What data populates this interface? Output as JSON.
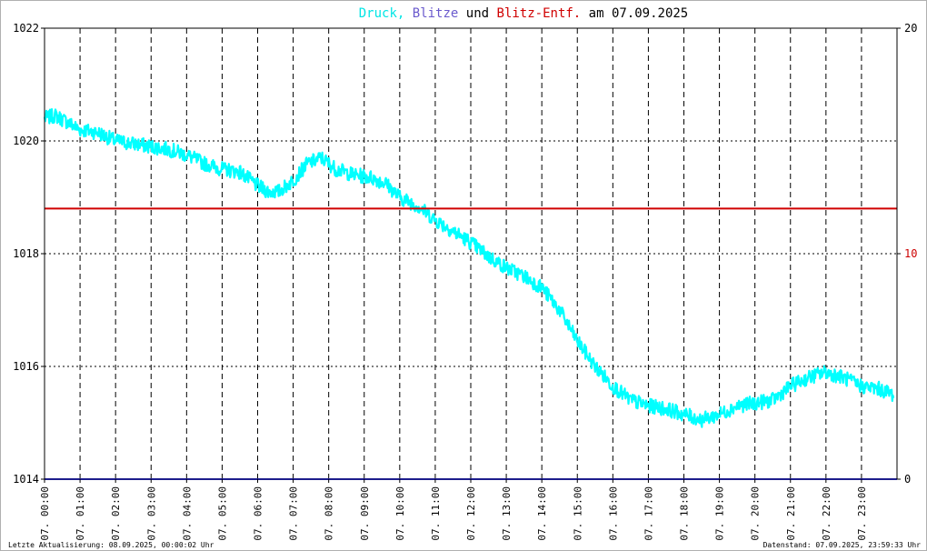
{
  "chart_data": {
    "type": "line",
    "title": {
      "parts": [
        {
          "text": "Druck",
          "color": "#00e5e5"
        },
        {
          "text": ",",
          "color": "#00e5e5"
        },
        {
          "text": " Blitze",
          "color": "#6a5acd"
        },
        {
          "text": " und ",
          "color": "#000000"
        },
        {
          "text": "Blitz-Entf.",
          "color": "#d00000"
        },
        {
          "text": " am 07.09.2025",
          "color": "#000000"
        }
      ]
    },
    "y_left": {
      "min": 1014,
      "max": 1022,
      "ticks": [
        "1014",
        "1016",
        "1018",
        "1020",
        "1022"
      ]
    },
    "y_right": {
      "min": 0,
      "max": 20,
      "ticks": [
        {
          "label": "0",
          "value": 0,
          "color": "#000000"
        },
        {
          "label": "10",
          "value": 10,
          "color": "#cc0000"
        },
        {
          "label": "20",
          "value": 20,
          "color": "#000000"
        }
      ]
    },
    "x": {
      "min": 0,
      "max": 24,
      "unit": "hours"
    },
    "x_ticks": [
      {
        "label": "07. 00:00",
        "hour": 0
      },
      {
        "label": "07. 01:00",
        "hour": 1
      },
      {
        "label": "07. 02:00",
        "hour": 2
      },
      {
        "label": "07. 03:00",
        "hour": 3
      },
      {
        "label": "07. 04:00",
        "hour": 4
      },
      {
        "label": "07. 05:00",
        "hour": 5
      },
      {
        "label": "07. 06:00",
        "hour": 6
      },
      {
        "label": "07. 07:00",
        "hour": 7
      },
      {
        "label": "07. 08:00",
        "hour": 8
      },
      {
        "label": "07. 09:00",
        "hour": 9
      },
      {
        "label": "07. 10:00",
        "hour": 10
      },
      {
        "label": "07. 11:00",
        "hour": 11
      },
      {
        "label": "07. 12:00",
        "hour": 12
      },
      {
        "label": "07. 13:00",
        "hour": 13
      },
      {
        "label": "07. 14:00",
        "hour": 14
      },
      {
        "label": "07. 15:00",
        "hour": 15
      },
      {
        "label": "07. 16:00",
        "hour": 16
      },
      {
        "label": "07. 17:00",
        "hour": 17
      },
      {
        "label": "07. 18:00",
        "hour": 18
      },
      {
        "label": "07. 19:00",
        "hour": 19
      },
      {
        "label": "07. 20:00",
        "hour": 20
      },
      {
        "label": "07. 21:00",
        "hour": 21
      },
      {
        "label": "07. 22:00",
        "hour": 22
      },
      {
        "label": "07. 23:00",
        "hour": 23
      }
    ],
    "grid": true,
    "series": [
      {
        "name": "Druck",
        "axis": "left",
        "color": "#00ffff",
        "points": [
          [
            0.0,
            1020.4
          ],
          [
            0.3,
            1020.45
          ],
          [
            0.6,
            1020.35
          ],
          [
            1.0,
            1020.2
          ],
          [
            1.5,
            1020.15
          ],
          [
            2.0,
            1020.0
          ],
          [
            2.5,
            1019.95
          ],
          [
            3.0,
            1019.9
          ],
          [
            3.5,
            1019.85
          ],
          [
            4.0,
            1019.75
          ],
          [
            4.5,
            1019.6
          ],
          [
            5.0,
            1019.5
          ],
          [
            5.5,
            1019.45
          ],
          [
            6.0,
            1019.2
          ],
          [
            6.3,
            1019.1
          ],
          [
            6.6,
            1019.1
          ],
          [
            7.0,
            1019.3
          ],
          [
            7.4,
            1019.6
          ],
          [
            7.8,
            1019.7
          ],
          [
            8.2,
            1019.5
          ],
          [
            8.7,
            1019.4
          ],
          [
            9.2,
            1019.35
          ],
          [
            9.6,
            1019.25
          ],
          [
            10.0,
            1019.0
          ],
          [
            10.5,
            1018.85
          ],
          [
            11.0,
            1018.6
          ],
          [
            11.5,
            1018.4
          ],
          [
            12.0,
            1018.2
          ],
          [
            12.5,
            1017.95
          ],
          [
            13.0,
            1017.75
          ],
          [
            13.5,
            1017.6
          ],
          [
            14.0,
            1017.4
          ],
          [
            14.5,
            1017.0
          ],
          [
            15.0,
            1016.45
          ],
          [
            15.5,
            1016.0
          ],
          [
            16.0,
            1015.65
          ],
          [
            16.5,
            1015.4
          ],
          [
            17.0,
            1015.3
          ],
          [
            17.5,
            1015.25
          ],
          [
            18.0,
            1015.15
          ],
          [
            18.5,
            1015.05
          ],
          [
            19.0,
            1015.15
          ],
          [
            19.5,
            1015.3
          ],
          [
            20.0,
            1015.35
          ],
          [
            20.5,
            1015.4
          ],
          [
            21.0,
            1015.65
          ],
          [
            21.5,
            1015.8
          ],
          [
            22.0,
            1015.9
          ],
          [
            22.5,
            1015.8
          ],
          [
            23.0,
            1015.65
          ],
          [
            23.5,
            1015.6
          ],
          [
            23.9,
            1015.5
          ]
        ]
      },
      {
        "name": "Blitz-Entf.",
        "axis": "right",
        "color": "#d00000",
        "constant": 12
      },
      {
        "name": "Blitze",
        "axis": "right",
        "color": "#1c1c8c",
        "constant": 0
      }
    ]
  },
  "footer": {
    "left": "Letzte Aktualisierung: 08.09.2025, 00:00:02 Uhr",
    "right": "Datenstand: 07.09.2025, 23:59:33 Uhr"
  }
}
